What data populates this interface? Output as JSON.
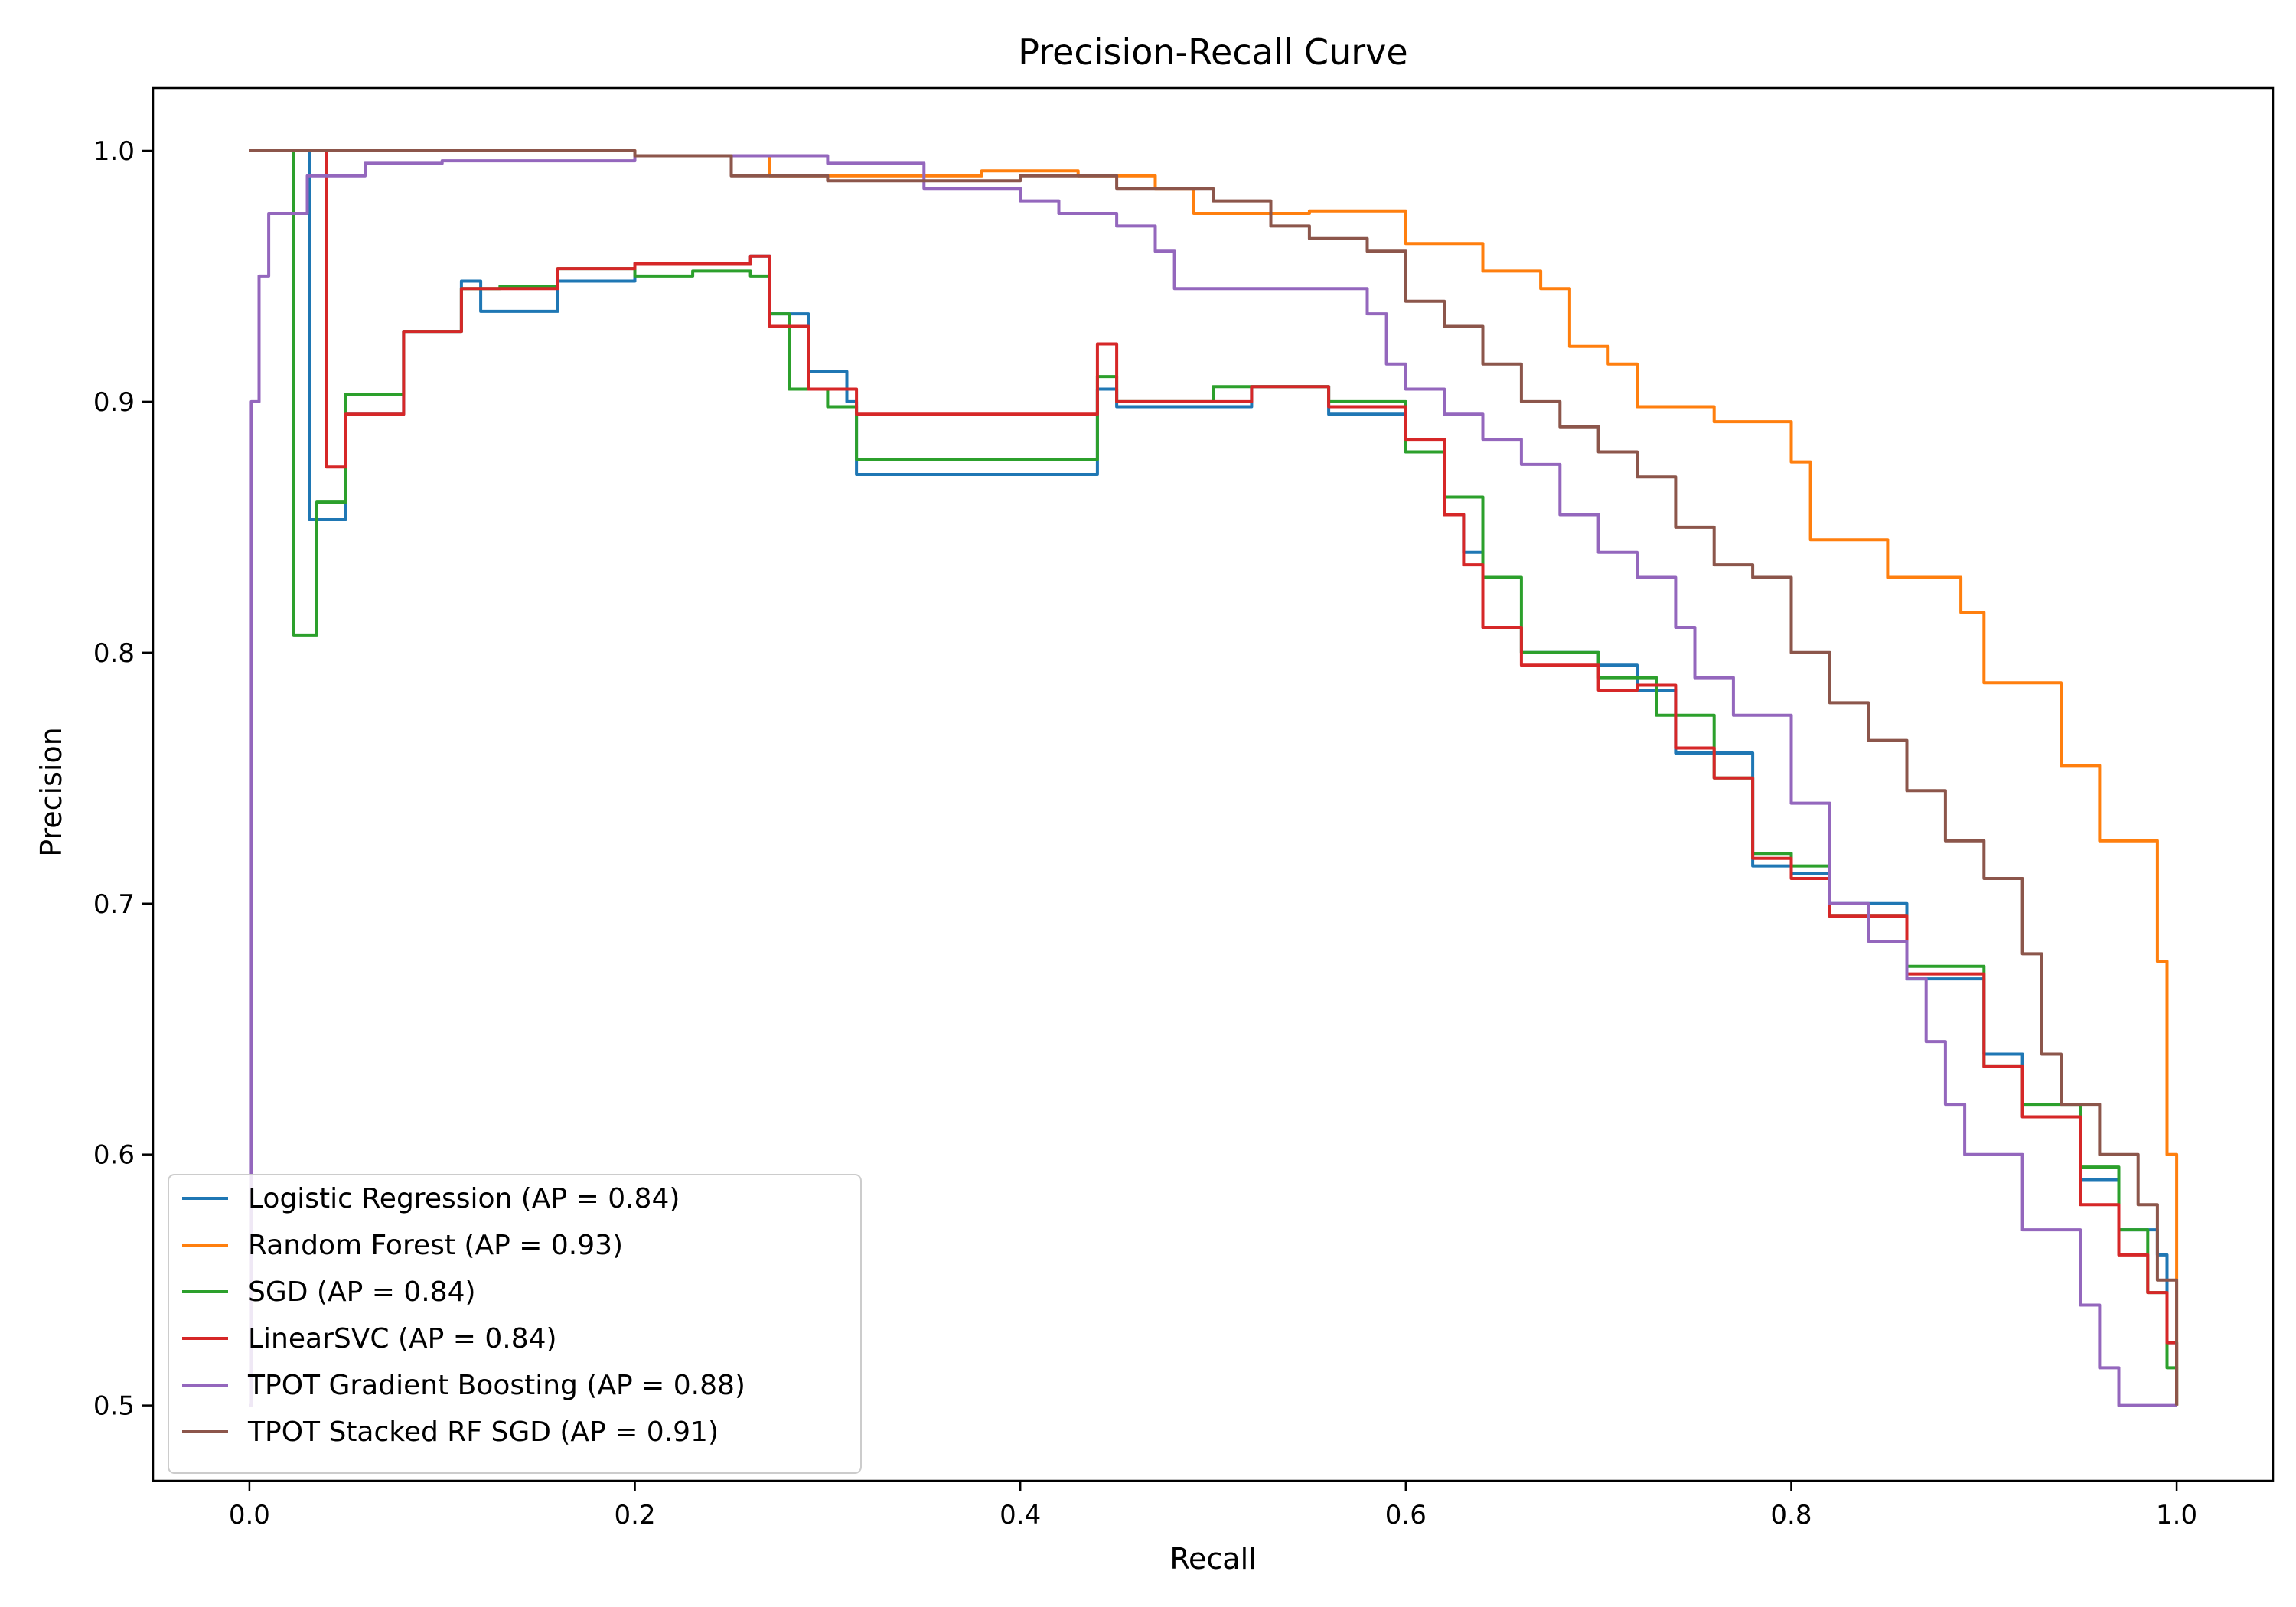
{
  "chart_data": {
    "type": "line",
    "title": "Precision-Recall Curve",
    "xlabel": "Recall",
    "ylabel": "Precision",
    "xlim": [
      -0.05,
      1.05
    ],
    "ylim": [
      0.47,
      1.025
    ],
    "xticks": [
      0.0,
      0.2,
      0.4,
      0.6,
      0.8,
      1.0
    ],
    "xtick_labels": [
      "0.0",
      "0.2",
      "0.4",
      "0.6",
      "0.8",
      "1.0"
    ],
    "yticks": [
      0.5,
      0.6,
      0.7,
      0.8,
      0.9,
      1.0
    ],
    "ytick_labels": [
      "0.5",
      "0.6",
      "0.7",
      "0.8",
      "0.9",
      "1.0"
    ],
    "grid": false,
    "legend_position": "lower-left",
    "series": [
      {
        "name": "Logistic Regression (AP = 0.84)",
        "color": "#1f77b4",
        "points": [
          [
            0.0,
            1.0
          ],
          [
            0.031,
            1.0
          ],
          [
            0.031,
            0.853
          ],
          [
            0.05,
            0.895
          ],
          [
            0.08,
            0.928
          ],
          [
            0.11,
            0.948
          ],
          [
            0.12,
            0.936
          ],
          [
            0.16,
            0.948
          ],
          [
            0.2,
            0.955
          ],
          [
            0.26,
            0.958
          ],
          [
            0.27,
            0.935
          ],
          [
            0.29,
            0.912
          ],
          [
            0.31,
            0.9
          ],
          [
            0.315,
            0.871
          ],
          [
            0.44,
            0.905
          ],
          [
            0.45,
            0.898
          ],
          [
            0.52,
            0.906
          ],
          [
            0.56,
            0.895
          ],
          [
            0.6,
            0.88
          ],
          [
            0.62,
            0.855
          ],
          [
            0.63,
            0.84
          ],
          [
            0.64,
            0.81
          ],
          [
            0.66,
            0.8
          ],
          [
            0.7,
            0.795
          ],
          [
            0.72,
            0.785
          ],
          [
            0.74,
            0.76
          ],
          [
            0.78,
            0.715
          ],
          [
            0.8,
            0.712
          ],
          [
            0.82,
            0.7
          ],
          [
            0.86,
            0.67
          ],
          [
            0.9,
            0.64
          ],
          [
            0.92,
            0.615
          ],
          [
            0.95,
            0.59
          ],
          [
            0.97,
            0.57
          ],
          [
            0.99,
            0.56
          ],
          [
            0.995,
            0.525
          ],
          [
            1.0,
            0.5
          ]
        ]
      },
      {
        "name": "Random Forest (AP = 0.93)",
        "color": "#ff7f0e",
        "points": [
          [
            0.0,
            1.0
          ],
          [
            0.1,
            1.0
          ],
          [
            0.2,
            0.998
          ],
          [
            0.27,
            0.99
          ],
          [
            0.38,
            0.992
          ],
          [
            0.43,
            0.99
          ],
          [
            0.47,
            0.985
          ],
          [
            0.49,
            0.975
          ],
          [
            0.55,
            0.976
          ],
          [
            0.6,
            0.963
          ],
          [
            0.64,
            0.952
          ],
          [
            0.67,
            0.945
          ],
          [
            0.685,
            0.922
          ],
          [
            0.705,
            0.915
          ],
          [
            0.72,
            0.898
          ],
          [
            0.76,
            0.892
          ],
          [
            0.8,
            0.876
          ],
          [
            0.81,
            0.845
          ],
          [
            0.85,
            0.83
          ],
          [
            0.888,
            0.816
          ],
          [
            0.9,
            0.788
          ],
          [
            0.94,
            0.755
          ],
          [
            0.96,
            0.725
          ],
          [
            0.99,
            0.677
          ],
          [
            0.995,
            0.6
          ],
          [
            1.0,
            0.5
          ]
        ]
      },
      {
        "name": "SGD (AP = 0.84)",
        "color": "#2ca02c",
        "points": [
          [
            0.0,
            1.0
          ],
          [
            0.023,
            1.0
          ],
          [
            0.023,
            0.807
          ],
          [
            0.035,
            0.86
          ],
          [
            0.05,
            0.903
          ],
          [
            0.08,
            0.928
          ],
          [
            0.11,
            0.945
          ],
          [
            0.13,
            0.946
          ],
          [
            0.16,
            0.953
          ],
          [
            0.2,
            0.95
          ],
          [
            0.23,
            0.952
          ],
          [
            0.26,
            0.95
          ],
          [
            0.27,
            0.935
          ],
          [
            0.28,
            0.905
          ],
          [
            0.3,
            0.898
          ],
          [
            0.315,
            0.877
          ],
          [
            0.44,
            0.91
          ],
          [
            0.45,
            0.9
          ],
          [
            0.5,
            0.906
          ],
          [
            0.56,
            0.9
          ],
          [
            0.6,
            0.88
          ],
          [
            0.62,
            0.862
          ],
          [
            0.64,
            0.83
          ],
          [
            0.66,
            0.8
          ],
          [
            0.7,
            0.79
          ],
          [
            0.73,
            0.775
          ],
          [
            0.76,
            0.75
          ],
          [
            0.78,
            0.72
          ],
          [
            0.8,
            0.715
          ],
          [
            0.82,
            0.695
          ],
          [
            0.86,
            0.675
          ],
          [
            0.9,
            0.635
          ],
          [
            0.92,
            0.62
          ],
          [
            0.95,
            0.595
          ],
          [
            0.97,
            0.57
          ],
          [
            0.985,
            0.545
          ],
          [
            0.995,
            0.515
          ],
          [
            1.0,
            0.5
          ]
        ]
      },
      {
        "name": "LinearSVC (AP = 0.84)",
        "color": "#d62728",
        "points": [
          [
            0.0,
            1.0
          ],
          [
            0.04,
            1.0
          ],
          [
            0.04,
            0.874
          ],
          [
            0.05,
            0.895
          ],
          [
            0.08,
            0.928
          ],
          [
            0.11,
            0.945
          ],
          [
            0.16,
            0.953
          ],
          [
            0.2,
            0.955
          ],
          [
            0.26,
            0.958
          ],
          [
            0.27,
            0.93
          ],
          [
            0.29,
            0.905
          ],
          [
            0.315,
            0.895
          ],
          [
            0.44,
            0.923
          ],
          [
            0.45,
            0.9
          ],
          [
            0.52,
            0.906
          ],
          [
            0.56,
            0.898
          ],
          [
            0.6,
            0.885
          ],
          [
            0.62,
            0.855
          ],
          [
            0.63,
            0.835
          ],
          [
            0.64,
            0.81
          ],
          [
            0.66,
            0.795
          ],
          [
            0.7,
            0.785
          ],
          [
            0.72,
            0.787
          ],
          [
            0.74,
            0.762
          ],
          [
            0.76,
            0.75
          ],
          [
            0.78,
            0.718
          ],
          [
            0.8,
            0.71
          ],
          [
            0.82,
            0.695
          ],
          [
            0.86,
            0.672
          ],
          [
            0.9,
            0.635
          ],
          [
            0.92,
            0.615
          ],
          [
            0.95,
            0.58
          ],
          [
            0.97,
            0.56
          ],
          [
            0.985,
            0.545
          ],
          [
            0.995,
            0.525
          ],
          [
            1.0,
            0.5
          ]
        ]
      },
      {
        "name": "TPOT Gradient Boosting (AP = 0.88)",
        "color": "#9467bd",
        "points": [
          [
            0.0,
            0.5
          ],
          [
            0.001,
            0.9
          ],
          [
            0.005,
            0.95
          ],
          [
            0.01,
            0.975
          ],
          [
            0.03,
            0.99
          ],
          [
            0.06,
            0.995
          ],
          [
            0.1,
            0.996
          ],
          [
            0.2,
            0.998
          ],
          [
            0.25,
            0.998
          ],
          [
            0.3,
            0.995
          ],
          [
            0.35,
            0.985
          ],
          [
            0.4,
            0.98
          ],
          [
            0.42,
            0.975
          ],
          [
            0.45,
            0.97
          ],
          [
            0.47,
            0.96
          ],
          [
            0.48,
            0.945
          ],
          [
            0.52,
            0.945
          ],
          [
            0.55,
            0.945
          ],
          [
            0.58,
            0.935
          ],
          [
            0.59,
            0.915
          ],
          [
            0.6,
            0.905
          ],
          [
            0.62,
            0.895
          ],
          [
            0.64,
            0.885
          ],
          [
            0.66,
            0.875
          ],
          [
            0.68,
            0.855
          ],
          [
            0.7,
            0.84
          ],
          [
            0.72,
            0.83
          ],
          [
            0.74,
            0.81
          ],
          [
            0.75,
            0.79
          ],
          [
            0.77,
            0.775
          ],
          [
            0.8,
            0.74
          ],
          [
            0.82,
            0.7
          ],
          [
            0.84,
            0.685
          ],
          [
            0.86,
            0.67
          ],
          [
            0.87,
            0.645
          ],
          [
            0.88,
            0.62
          ],
          [
            0.89,
            0.6
          ],
          [
            0.92,
            0.57
          ],
          [
            0.95,
            0.54
          ],
          [
            0.96,
            0.515
          ],
          [
            0.97,
            0.5
          ],
          [
            1.0,
            0.5
          ]
        ]
      },
      {
        "name": "TPOT Stacked RF SGD (AP = 0.91)",
        "color": "#8c564b",
        "points": [
          [
            0.0,
            1.0
          ],
          [
            0.1,
            1.0
          ],
          [
            0.2,
            0.998
          ],
          [
            0.25,
            0.99
          ],
          [
            0.3,
            0.988
          ],
          [
            0.4,
            0.99
          ],
          [
            0.45,
            0.985
          ],
          [
            0.5,
            0.98
          ],
          [
            0.53,
            0.97
          ],
          [
            0.55,
            0.965
          ],
          [
            0.58,
            0.96
          ],
          [
            0.6,
            0.94
          ],
          [
            0.62,
            0.93
          ],
          [
            0.64,
            0.915
          ],
          [
            0.66,
            0.9
          ],
          [
            0.68,
            0.89
          ],
          [
            0.7,
            0.88
          ],
          [
            0.72,
            0.87
          ],
          [
            0.74,
            0.85
          ],
          [
            0.76,
            0.835
          ],
          [
            0.78,
            0.83
          ],
          [
            0.8,
            0.8
          ],
          [
            0.82,
            0.78
          ],
          [
            0.84,
            0.765
          ],
          [
            0.86,
            0.745
          ],
          [
            0.88,
            0.725
          ],
          [
            0.9,
            0.71
          ],
          [
            0.92,
            0.68
          ],
          [
            0.93,
            0.64
          ],
          [
            0.94,
            0.62
          ],
          [
            0.96,
            0.6
          ],
          [
            0.98,
            0.58
          ],
          [
            0.99,
            0.55
          ],
          [
            1.0,
            0.5
          ]
        ]
      }
    ]
  }
}
